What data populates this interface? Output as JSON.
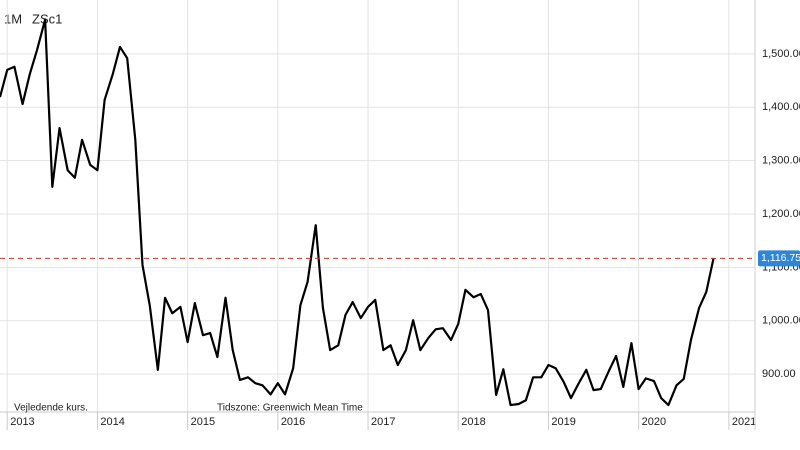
{
  "header": {
    "interval": "1M",
    "symbol": "ZSc1"
  },
  "footer": {
    "note": "Vejledende kurs.",
    "timezone": "Tidszone: Greenwich Mean Time"
  },
  "chart_data": {
    "type": "line",
    "x": [
      2012.92,
      2013.0,
      2013.08,
      2013.17,
      2013.25,
      2013.33,
      2013.42,
      2013.5,
      2013.58,
      2013.67,
      2013.75,
      2013.83,
      2013.92,
      2014.0,
      2014.08,
      2014.17,
      2014.25,
      2014.33,
      2014.42,
      2014.5,
      2014.58,
      2014.67,
      2014.75,
      2014.83,
      2014.92,
      2015.0,
      2015.08,
      2015.17,
      2015.25,
      2015.33,
      2015.42,
      2015.5,
      2015.58,
      2015.67,
      2015.75,
      2015.83,
      2015.92,
      2016.0,
      2016.08,
      2016.17,
      2016.25,
      2016.33,
      2016.42,
      2016.5,
      2016.58,
      2016.67,
      2016.75,
      2016.83,
      2016.92,
      2017.0,
      2017.08,
      2017.17,
      2017.25,
      2017.33,
      2017.42,
      2017.5,
      2017.58,
      2017.67,
      2017.75,
      2017.83,
      2017.92,
      2018.0,
      2018.08,
      2018.17,
      2018.25,
      2018.33,
      2018.42,
      2018.5,
      2018.58,
      2018.67,
      2018.75,
      2018.83,
      2018.92,
      2019.0,
      2019.08,
      2019.17,
      2019.25,
      2019.33,
      2019.42,
      2019.5,
      2019.58,
      2019.67,
      2019.75,
      2019.83,
      2019.92,
      2020.0,
      2020.08,
      2020.17,
      2020.25,
      2020.33,
      2020.42,
      2020.5,
      2020.58,
      2020.67,
      2020.75,
      2020.83
    ],
    "series": [
      {
        "name": "ZSc1",
        "color": "#000000",
        "values": [
          1419,
          1470,
          1476,
          1406,
          1462,
          1507,
          1564,
          1251,
          1361,
          1282,
          1268,
          1339,
          1292,
          1282,
          1414,
          1462,
          1513,
          1492,
          1339,
          1104,
          1029,
          908,
          1043,
          1014,
          1026,
          960,
          1033,
          973,
          977,
          932,
          1043,
          945,
          889,
          894,
          883,
          879,
          862,
          883,
          862,
          911,
          1029,
          1073,
          1179,
          1024,
          945,
          954,
          1011,
          1035,
          1005,
          1026,
          1039,
          945,
          954,
          917,
          945,
          1001,
          945,
          968,
          984,
          986,
          964,
          994,
          1058,
          1044,
          1050,
          1020,
          861,
          909,
          842,
          844,
          851,
          894,
          894,
          917,
          911,
          885,
          855,
          881,
          908,
          870,
          872,
          906,
          934,
          876,
          958,
          872,
          892,
          887,
          855,
          842,
          879,
          891,
          964,
          1024,
          1054,
          1116.75
        ]
      }
    ],
    "last_price": {
      "value": 1116.75,
      "label": "1,116.75"
    },
    "xlim": [
      2012.92,
      2021.29
    ],
    "xticks": [
      2013,
      2014,
      2015,
      2016,
      2017,
      2018,
      2019,
      2020,
      2021
    ],
    "ylim": [
      829,
      1601
    ],
    "yticks": [
      {
        "value": 900,
        "label": "900.00"
      },
      {
        "value": 1000,
        "label": "1,000.00"
      },
      {
        "value": 1100,
        "label": "1,100.00"
      },
      {
        "value": 1200,
        "label": "1,200.00"
      },
      {
        "value": 1300,
        "label": "1,300.00"
      },
      {
        "value": 1400,
        "label": "1,400.00"
      },
      {
        "value": 1500,
        "label": "1,500.00"
      }
    ],
    "grid": true
  }
}
